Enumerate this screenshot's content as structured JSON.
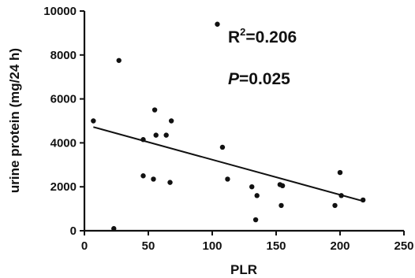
{
  "chart_data": {
    "type": "scatter",
    "title": "",
    "xlabel": "PLR",
    "ylabel": "urine protein (mg/24 h)",
    "xlim": [
      0,
      250
    ],
    "ylim": [
      0,
      10000
    ],
    "xticks": [
      0,
      50,
      100,
      150,
      200,
      250
    ],
    "yticks": [
      0,
      2000,
      4000,
      6000,
      8000,
      10000
    ],
    "grid": false,
    "points": [
      {
        "x": 7,
        "y": 5000
      },
      {
        "x": 23,
        "y": 100
      },
      {
        "x": 27,
        "y": 7750
      },
      {
        "x": 46,
        "y": 4150
      },
      {
        "x": 46,
        "y": 2500
      },
      {
        "x": 54,
        "y": 2350
      },
      {
        "x": 55,
        "y": 5500
      },
      {
        "x": 56,
        "y": 4350
      },
      {
        "x": 64,
        "y": 4350
      },
      {
        "x": 67,
        "y": 2200
      },
      {
        "x": 68,
        "y": 5000
      },
      {
        "x": 104,
        "y": 9400
      },
      {
        "x": 108,
        "y": 3800
      },
      {
        "x": 112,
        "y": 2350
      },
      {
        "x": 131,
        "y": 2000
      },
      {
        "x": 134,
        "y": 500
      },
      {
        "x": 135,
        "y": 1600
      },
      {
        "x": 153,
        "y": 2100
      },
      {
        "x": 154,
        "y": 1150
      },
      {
        "x": 155,
        "y": 2050
      },
      {
        "x": 196,
        "y": 1150
      },
      {
        "x": 200,
        "y": 2650
      },
      {
        "x": 201,
        "y": 1600
      },
      {
        "x": 218,
        "y": 1400
      }
    ],
    "regression_line": {
      "x": [
        7,
        218
      ],
      "y": [
        4720,
        1350
      ]
    },
    "annotations": {
      "r2_base": "R",
      "r2_sup": "2",
      "r2_value": "=0.206",
      "p_label": "P",
      "p_value": "=0.025"
    }
  }
}
